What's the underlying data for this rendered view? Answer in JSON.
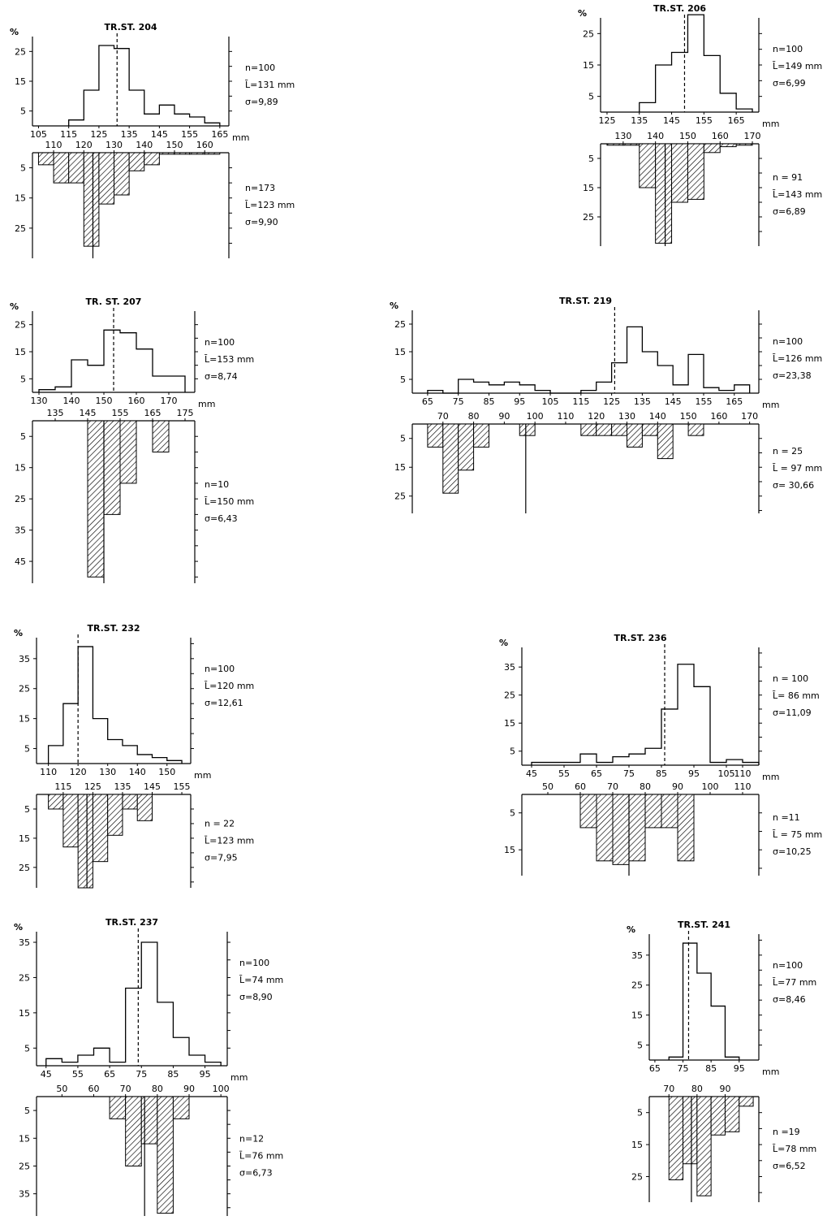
{
  "colors": {
    "ink": "#000000",
    "paper": "#ffffff"
  },
  "chart_data": [
    {
      "type": "bar",
      "title": "TR.ST. 204",
      "ylabel": "%",
      "xunit": "mm",
      "top": {
        "x_ticks": [
          105,
          115,
          125,
          135,
          145,
          155,
          165
        ],
        "y_ticks": [
          5,
          15,
          25
        ],
        "xlim": [
          103,
          168
        ],
        "ylim": [
          0,
          30
        ],
        "bins": [
          [
            115,
            120,
            2
          ],
          [
            120,
            125,
            12
          ],
          [
            125,
            130,
            27
          ],
          [
            130,
            135,
            26
          ],
          [
            135,
            140,
            12
          ],
          [
            140,
            145,
            4
          ],
          [
            145,
            150,
            7
          ],
          [
            150,
            155,
            4
          ],
          [
            155,
            160,
            3
          ],
          [
            160,
            165,
            1
          ]
        ],
        "mean": 131,
        "stats": [
          "n=100",
          "L̄=131 mm",
          "σ=9,89"
        ]
      },
      "bottom": {
        "x_ticks": [
          110,
          120,
          130,
          140,
          150,
          160
        ],
        "y_ticks": [
          5,
          15,
          25
        ],
        "xlim": [
          103,
          168
        ],
        "ylim": [
          0,
          35
        ],
        "bins": [
          [
            105,
            110,
            4
          ],
          [
            110,
            115,
            10
          ],
          [
            115,
            120,
            10
          ],
          [
            120,
            125,
            31
          ],
          [
            125,
            130,
            17
          ],
          [
            130,
            135,
            14
          ],
          [
            135,
            140,
            6
          ],
          [
            140,
            145,
            4
          ],
          [
            145,
            150,
            0.5
          ],
          [
            150,
            155,
            0.5
          ],
          [
            155,
            160,
            0.5
          ],
          [
            160,
            165,
            0.5
          ]
        ],
        "mean": 123,
        "stats": [
          "n=173",
          "L̄=123 mm",
          "σ=9,90"
        ]
      }
    },
    {
      "type": "bar",
      "title": "TR.ST. 206",
      "ylabel": "%",
      "xunit": "mm",
      "top": {
        "x_ticks": [
          125,
          135,
          145,
          155,
          165
        ],
        "y_ticks": [
          5,
          15,
          25
        ],
        "xlim": [
          123,
          172
        ],
        "ylim": [
          0,
          30
        ],
        "bins": [
          [
            135,
            140,
            3
          ],
          [
            140,
            145,
            15
          ],
          [
            145,
            150,
            19
          ],
          [
            150,
            155,
            31
          ],
          [
            155,
            160,
            18
          ],
          [
            160,
            165,
            6
          ],
          [
            165,
            170,
            1
          ]
        ],
        "mean": 149,
        "stats": [
          "n=100",
          "L̄=149 mm",
          "σ=6,99"
        ]
      },
      "bottom": {
        "x_ticks": [
          130,
          140,
          150,
          160,
          170
        ],
        "y_ticks": [
          5,
          15,
          25
        ],
        "xlim": [
          123,
          172
        ],
        "ylim": [
          0,
          35
        ],
        "bins": [
          [
            125,
            130,
            0.5
          ],
          [
            130,
            135,
            0.5
          ],
          [
            135,
            140,
            15
          ],
          [
            140,
            145,
            34
          ],
          [
            145,
            150,
            20
          ],
          [
            150,
            155,
            19
          ],
          [
            155,
            160,
            3
          ],
          [
            160,
            165,
            1
          ],
          [
            165,
            170,
            0.5
          ]
        ],
        "mean": 143,
        "stats": [
          "n = 91",
          "L̄=143 mm",
          "σ=6,89"
        ]
      }
    },
    {
      "type": "bar",
      "title": "TR. ST. 207",
      "ylabel": "%",
      "xunit": "mm",
      "top": {
        "x_ticks": [
          130,
          140,
          150,
          160,
          170
        ],
        "y_ticks": [
          5,
          15,
          25
        ],
        "xlim": [
          128,
          178
        ],
        "ylim": [
          0,
          30
        ],
        "bins": [
          [
            130,
            135,
            1
          ],
          [
            135,
            140,
            2
          ],
          [
            140,
            145,
            12
          ],
          [
            145,
            150,
            10
          ],
          [
            150,
            155,
            23
          ],
          [
            155,
            160,
            22
          ],
          [
            160,
            165,
            16
          ],
          [
            165,
            170,
            6
          ],
          [
            170,
            175,
            6
          ]
        ],
        "mean": 153,
        "stats": [
          "n=100",
          "L̄=153 mm",
          "σ=8,74"
        ]
      },
      "bottom": {
        "x_ticks": [
          135,
          145,
          155,
          165,
          175
        ],
        "y_ticks": [
          5,
          15,
          25,
          35,
          45
        ],
        "xlim": [
          128,
          178
        ],
        "ylim": [
          0,
          52
        ],
        "bins": [
          [
            145,
            150,
            50
          ],
          [
            150,
            155,
            30
          ],
          [
            155,
            160,
            20
          ],
          [
            160,
            165,
            0
          ],
          [
            165,
            170,
            10
          ]
        ],
        "mean": 150,
        "stats": [
          "n=10",
          "L̄=150 mm",
          "σ=6,43"
        ]
      }
    },
    {
      "type": "bar",
      "title": "TR.ST. 219",
      "ylabel": "%",
      "xunit": "mm",
      "top": {
        "x_ticks": [
          65,
          75,
          85,
          95,
          105,
          115,
          125,
          135,
          145,
          155,
          165
        ],
        "y_ticks": [
          5,
          15,
          25
        ],
        "xlim": [
          60,
          173
        ],
        "ylim": [
          0,
          30
        ],
        "bins": [
          [
            65,
            70,
            1
          ],
          [
            70,
            75,
            0
          ],
          [
            75,
            80,
            5
          ],
          [
            80,
            85,
            4
          ],
          [
            85,
            90,
            3
          ],
          [
            90,
            95,
            4
          ],
          [
            95,
            100,
            3
          ],
          [
            100,
            105,
            1
          ],
          [
            105,
            110,
            0
          ],
          [
            110,
            115,
            0
          ],
          [
            115,
            120,
            1
          ],
          [
            120,
            125,
            4
          ],
          [
            125,
            130,
            11
          ],
          [
            130,
            135,
            24
          ],
          [
            135,
            140,
            15
          ],
          [
            140,
            145,
            10
          ],
          [
            145,
            150,
            3
          ],
          [
            150,
            155,
            14
          ],
          [
            155,
            160,
            2
          ],
          [
            160,
            165,
            1
          ],
          [
            165,
            170,
            3
          ]
        ],
        "mean": 126,
        "stats": [
          "n=100",
          "L̄=126 mm",
          "σ=23,38"
        ]
      },
      "bottom": {
        "x_ticks": [
          70,
          80,
          90,
          100,
          110,
          120,
          130,
          140,
          150,
          160,
          170
        ],
        "y_ticks": [
          5,
          15,
          25
        ],
        "xlim": [
          60,
          173
        ],
        "ylim": [
          0,
          31
        ],
        "bins": [
          [
            65,
            70,
            8
          ],
          [
            70,
            75,
            24
          ],
          [
            75,
            80,
            16
          ],
          [
            80,
            85,
            8
          ],
          [
            95,
            100,
            4
          ],
          [
            115,
            120,
            4
          ],
          [
            120,
            125,
            4
          ],
          [
            125,
            130,
            4
          ],
          [
            130,
            135,
            8
          ],
          [
            135,
            140,
            4
          ],
          [
            140,
            145,
            12
          ],
          [
            150,
            155,
            4
          ]
        ],
        "mean": 97,
        "stats": [
          "n = 25",
          "L̄ = 97 mm",
          "σ= 30,66"
        ]
      }
    },
    {
      "type": "bar",
      "title": "TR.ST. 232",
      "ylabel": "%",
      "xunit": "mm",
      "top": {
        "x_ticks": [
          110,
          120,
          130,
          140,
          150
        ],
        "y_ticks": [
          5,
          15,
          25,
          35
        ],
        "xlim": [
          106,
          158
        ],
        "ylim": [
          0,
          42
        ],
        "bins": [
          [
            110,
            115,
            6
          ],
          [
            115,
            120,
            20
          ],
          [
            120,
            125,
            39
          ],
          [
            125,
            130,
            15
          ],
          [
            130,
            135,
            8
          ],
          [
            135,
            140,
            6
          ],
          [
            140,
            145,
            3
          ],
          [
            145,
            150,
            2
          ],
          [
            150,
            155,
            1
          ]
        ],
        "mean": 120,
        "stats": [
          "n=100",
          "L̄=120 mm",
          "σ=12,61"
        ]
      },
      "bottom": {
        "x_ticks": [
          115,
          125,
          135,
          145,
          155
        ],
        "y_ticks": [
          5,
          15,
          25
        ],
        "xlim": [
          106,
          158
        ],
        "ylim": [
          0,
          32
        ],
        "bins": [
          [
            110,
            115,
            5
          ],
          [
            115,
            120,
            18
          ],
          [
            120,
            125,
            32
          ],
          [
            125,
            130,
            23
          ],
          [
            130,
            135,
            14
          ],
          [
            135,
            140,
            5
          ],
          [
            140,
            145,
            9
          ]
        ],
        "mean": 123,
        "stats": [
          "n = 22",
          "L̄=123 mm",
          "σ=7,95"
        ]
      }
    },
    {
      "type": "bar",
      "title": "TR.ST. 236",
      "ylabel": "%",
      "xunit": "mm",
      "top": {
        "x_ticks": [
          45,
          55,
          65,
          75,
          85,
          95,
          105,
          110
        ],
        "y_ticks": [
          5,
          15,
          25,
          35
        ],
        "xlim": [
          42,
          115
        ],
        "ylim": [
          0,
          42
        ],
        "bins": [
          [
            45,
            50,
            1
          ],
          [
            50,
            55,
            1
          ],
          [
            55,
            60,
            1
          ],
          [
            60,
            65,
            4
          ],
          [
            65,
            70,
            1
          ],
          [
            70,
            75,
            3
          ],
          [
            75,
            80,
            4
          ],
          [
            80,
            85,
            6
          ],
          [
            85,
            90,
            20
          ],
          [
            90,
            95,
            36
          ],
          [
            95,
            100,
            28
          ],
          [
            100,
            105,
            1
          ],
          [
            105,
            110,
            2
          ],
          [
            110,
            115,
            1
          ]
        ],
        "mean": 86,
        "stats": [
          "n = 100",
          "L̄= 86 mm",
          "σ=11,09"
        ]
      },
      "bottom": {
        "x_ticks": [
          50,
          60,
          70,
          80,
          90,
          100,
          110
        ],
        "y_ticks": [
          5,
          15
        ],
        "xlim": [
          42,
          115
        ],
        "ylim": [
          0,
          22
        ],
        "bins": [
          [
            60,
            65,
            9
          ],
          [
            65,
            70,
            18
          ],
          [
            70,
            75,
            19
          ],
          [
            75,
            80,
            18
          ],
          [
            80,
            85,
            9
          ],
          [
            85,
            90,
            9
          ],
          [
            90,
            95,
            18
          ]
        ],
        "mean": 75,
        "stats": [
          "n =11",
          "L̄ = 75 mm",
          "σ=10,25"
        ]
      }
    },
    {
      "type": "bar",
      "title": "TR.ST. 237",
      "ylabel": "%",
      "xunit": "mm",
      "top": {
        "x_ticks": [
          45,
          55,
          65,
          75,
          85,
          95
        ],
        "y_ticks": [
          5,
          15,
          25,
          35
        ],
        "xlim": [
          42,
          102
        ],
        "ylim": [
          0,
          38
        ],
        "bins": [
          [
            45,
            50,
            2
          ],
          [
            50,
            55,
            1
          ],
          [
            55,
            60,
            3
          ],
          [
            60,
            65,
            5
          ],
          [
            65,
            70,
            1
          ],
          [
            70,
            75,
            22
          ],
          [
            75,
            80,
            35
          ],
          [
            80,
            85,
            18
          ],
          [
            85,
            90,
            8
          ],
          [
            90,
            95,
            3
          ],
          [
            95,
            100,
            1
          ]
        ],
        "mean": 74,
        "stats": [
          "n=100",
          "L̄=74 mm",
          "σ=8,90"
        ]
      },
      "bottom": {
        "x_ticks": [
          50,
          60,
          70,
          80,
          90,
          100
        ],
        "y_ticks": [
          5,
          15,
          25,
          35
        ],
        "xlim": [
          42,
          102
        ],
        "ylim": [
          0,
          43
        ],
        "bins": [
          [
            65,
            70,
            8
          ],
          [
            70,
            75,
            25
          ],
          [
            75,
            80,
            17
          ],
          [
            80,
            85,
            42
          ],
          [
            85,
            90,
            8
          ]
        ],
        "mean": 76,
        "stats": [
          "n=12",
          "L̄=76 mm",
          "σ=6,73"
        ]
      }
    },
    {
      "type": "bar",
      "title": "TR.ST. 241",
      "ylabel": "%",
      "xunit": "mm",
      "top": {
        "x_ticks": [
          65,
          75,
          85,
          95
        ],
        "y_ticks": [
          5,
          15,
          25,
          35
        ],
        "xlim": [
          63,
          102
        ],
        "ylim": [
          0,
          42
        ],
        "bins": [
          [
            70,
            75,
            1
          ],
          [
            75,
            80,
            39
          ],
          [
            80,
            85,
            29
          ],
          [
            85,
            90,
            18
          ],
          [
            90,
            95,
            1
          ]
        ],
        "mean": 77,
        "stats": [
          "n=100",
          "L̄=77 mm",
          "σ=8,46"
        ]
      },
      "bottom": {
        "x_ticks": [
          70,
          80,
          90
        ],
        "y_ticks": [
          5,
          15,
          25
        ],
        "xlim": [
          63,
          102
        ],
        "ylim": [
          0,
          33
        ],
        "bins": [
          [
            70,
            75,
            26
          ],
          [
            75,
            80,
            21
          ],
          [
            80,
            85,
            31
          ],
          [
            85,
            90,
            12
          ],
          [
            90,
            95,
            11
          ],
          [
            95,
            100,
            3
          ]
        ],
        "mean": 78,
        "stats": [
          "n =19",
          "L̄=78 mm",
          "σ=6,52"
        ]
      }
    }
  ]
}
